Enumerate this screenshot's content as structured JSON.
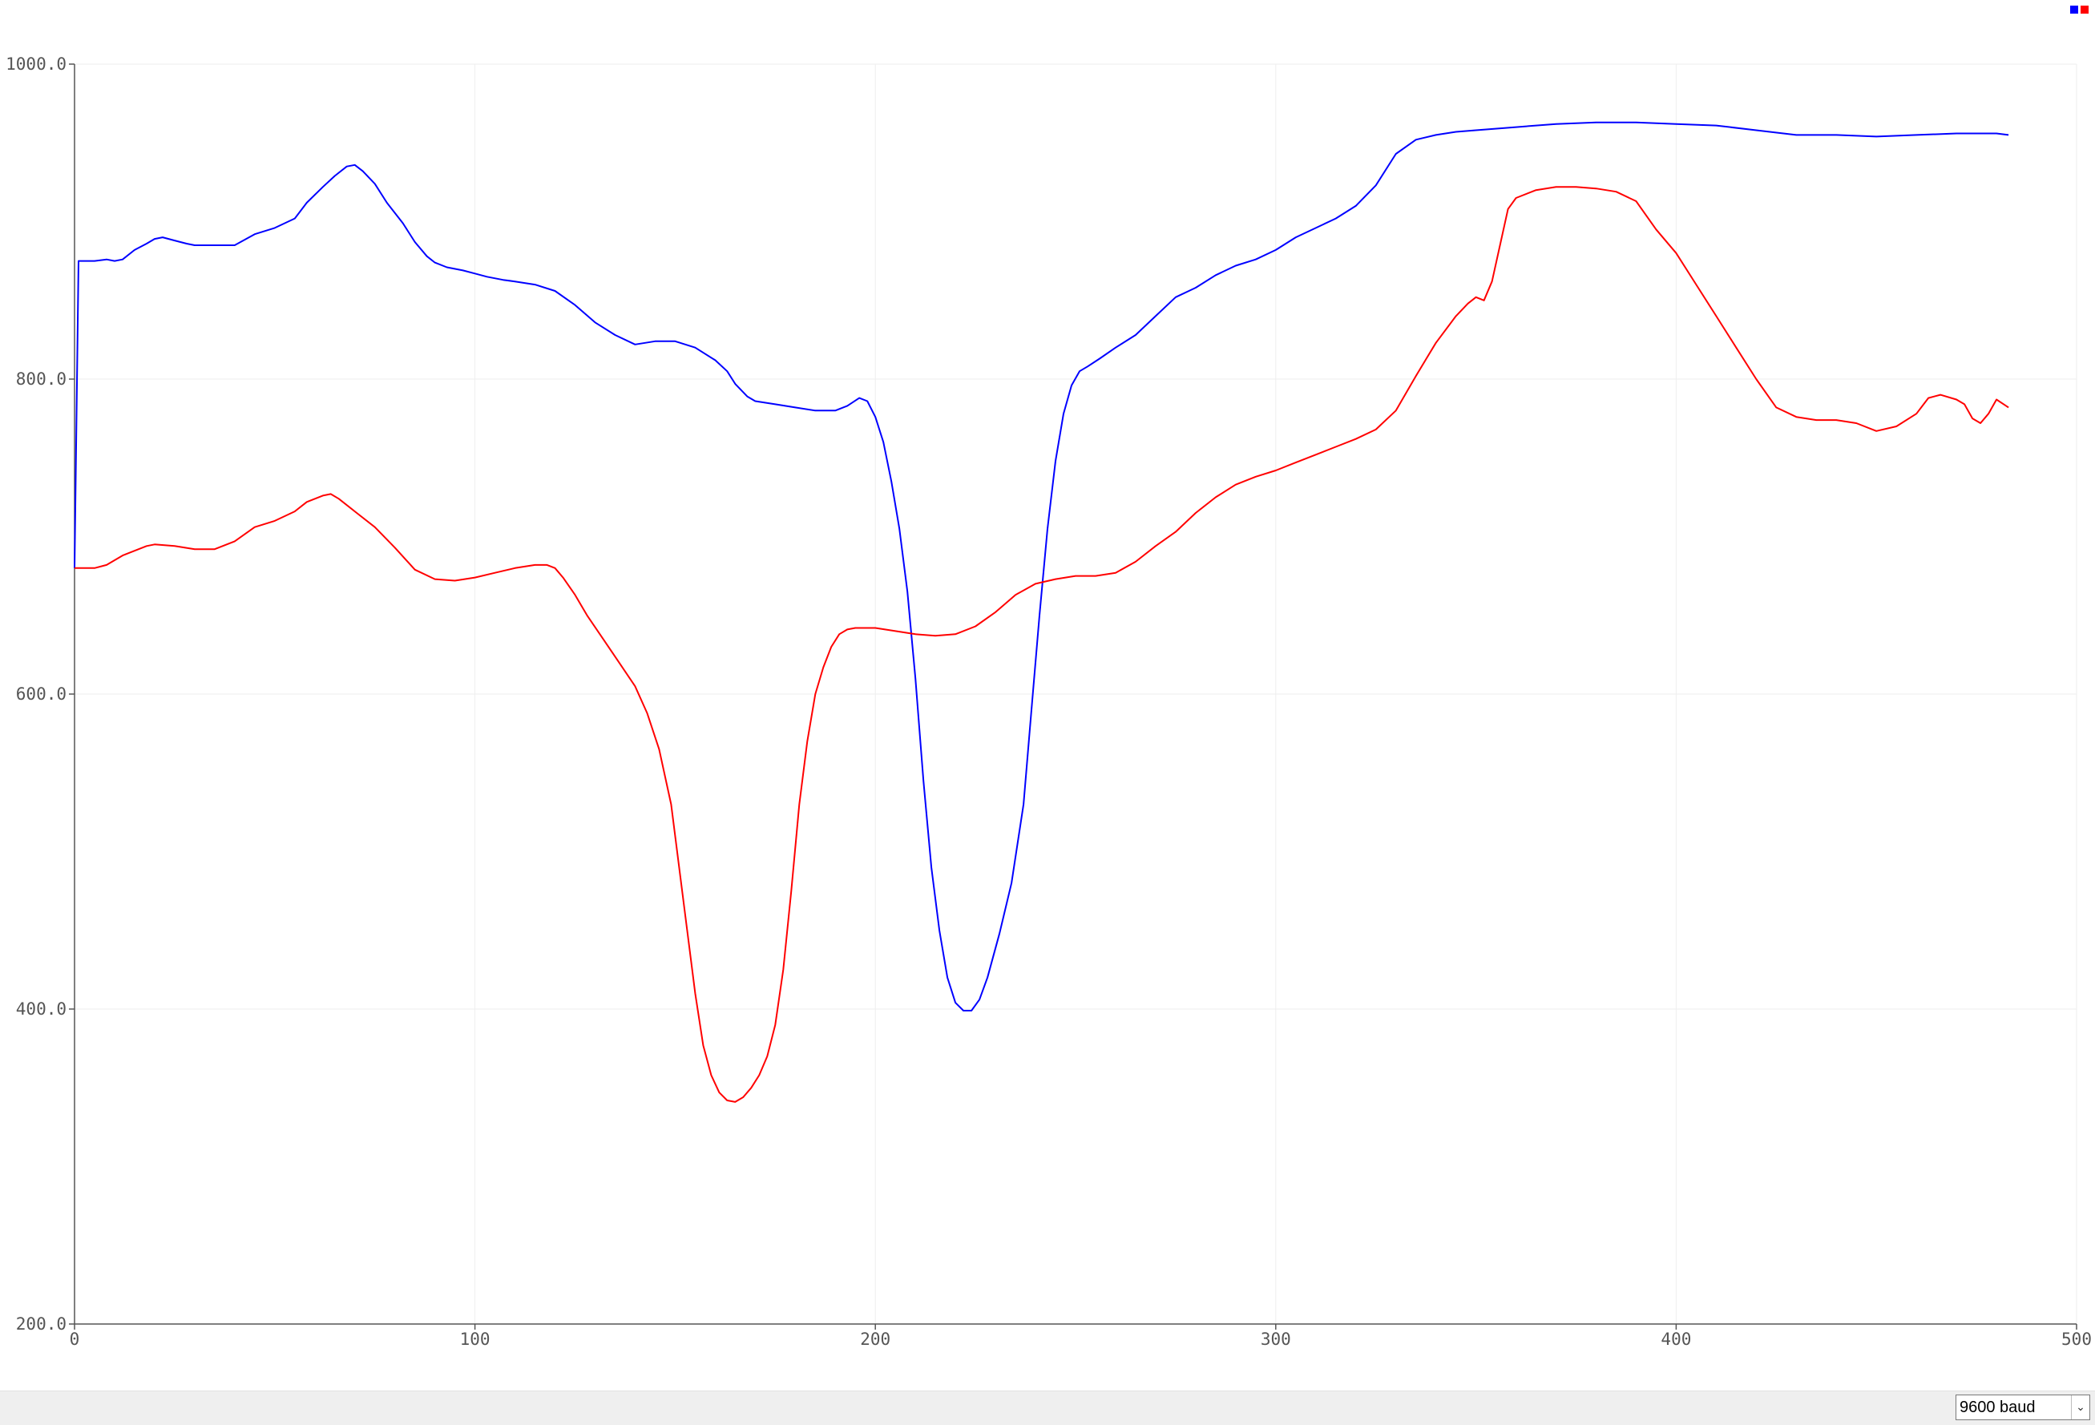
{
  "chart_data": {
    "type": "line",
    "title": "",
    "xlabel": "",
    "ylabel": "",
    "xlim": [
      0,
      500
    ],
    "ylim": [
      200,
      1000
    ],
    "x_ticks": [
      "0",
      "100",
      "200",
      "300",
      "400",
      "500"
    ],
    "y_ticks": [
      "200.0",
      "400.0",
      "600.0",
      "800.0",
      "1000.0"
    ],
    "grid": true,
    "legend": "top-right",
    "series": [
      {
        "color": "#0000ff",
        "points": [
          [
            0,
            680
          ],
          [
            1,
            875
          ],
          [
            5,
            875
          ],
          [
            8,
            876
          ],
          [
            10,
            875
          ],
          [
            12,
            876
          ],
          [
            15,
            882
          ],
          [
            18,
            886
          ],
          [
            20,
            889
          ],
          [
            22,
            890
          ],
          [
            25,
            888
          ],
          [
            28,
            886
          ],
          [
            30,
            885
          ],
          [
            40,
            885
          ],
          [
            45,
            892
          ],
          [
            50,
            896
          ],
          [
            55,
            902
          ],
          [
            58,
            912
          ],
          [
            62,
            922
          ],
          [
            65,
            929
          ],
          [
            68,
            935
          ],
          [
            70,
            936
          ],
          [
            72,
            932
          ],
          [
            75,
            924
          ],
          [
            78,
            912
          ],
          [
            82,
            899
          ],
          [
            85,
            887
          ],
          [
            88,
            878
          ],
          [
            90,
            874
          ],
          [
            93,
            871
          ],
          [
            97,
            869
          ],
          [
            100,
            867
          ],
          [
            103,
            865
          ],
          [
            107,
            863
          ],
          [
            110,
            862
          ],
          [
            115,
            860
          ],
          [
            120,
            856
          ],
          [
            125,
            847
          ],
          [
            130,
            836
          ],
          [
            135,
            828
          ],
          [
            140,
            822
          ],
          [
            145,
            824
          ],
          [
            150,
            824
          ],
          [
            155,
            820
          ],
          [
            160,
            812
          ],
          [
            163,
            805
          ],
          [
            165,
            797
          ],
          [
            168,
            789
          ],
          [
            170,
            786
          ],
          [
            175,
            784
          ],
          [
            180,
            782
          ],
          [
            185,
            780
          ],
          [
            190,
            780
          ],
          [
            193,
            783
          ],
          [
            196,
            788
          ],
          [
            198,
            786
          ],
          [
            200,
            776
          ],
          [
            202,
            760
          ],
          [
            204,
            735
          ],
          [
            206,
            705
          ],
          [
            208,
            665
          ],
          [
            210,
            610
          ],
          [
            212,
            545
          ],
          [
            214,
            490
          ],
          [
            216,
            450
          ],
          [
            218,
            420
          ],
          [
            220,
            404
          ],
          [
            222,
            399
          ],
          [
            224,
            399
          ],
          [
            226,
            406
          ],
          [
            228,
            420
          ],
          [
            231,
            448
          ],
          [
            234,
            480
          ],
          [
            237,
            530
          ],
          [
            239,
            590
          ],
          [
            241,
            650
          ],
          [
            243,
            705
          ],
          [
            245,
            748
          ],
          [
            247,
            778
          ],
          [
            249,
            796
          ],
          [
            251,
            805
          ],
          [
            253,
            808
          ],
          [
            256,
            813
          ],
          [
            260,
            820
          ],
          [
            265,
            828
          ],
          [
            270,
            840
          ],
          [
            275,
            852
          ],
          [
            280,
            858
          ],
          [
            285,
            866
          ],
          [
            290,
            872
          ],
          [
            295,
            876
          ],
          [
            300,
            882
          ],
          [
            305,
            890
          ],
          [
            310,
            896
          ],
          [
            315,
            902
          ],
          [
            320,
            910
          ],
          [
            325,
            923
          ],
          [
            330,
            943
          ],
          [
            335,
            952
          ],
          [
            340,
            955
          ],
          [
            345,
            957
          ],
          [
            350,
            958
          ],
          [
            360,
            960
          ],
          [
            370,
            962
          ],
          [
            380,
            963
          ],
          [
            390,
            963
          ],
          [
            400,
            962
          ],
          [
            410,
            961
          ],
          [
            420,
            958
          ],
          [
            430,
            955
          ],
          [
            440,
            955
          ],
          [
            450,
            954
          ],
          [
            460,
            955
          ],
          [
            470,
            956
          ],
          [
            480,
            956
          ],
          [
            483,
            955
          ]
        ]
      },
      {
        "color": "#ff0000",
        "points": [
          [
            0,
            680
          ],
          [
            5,
            680
          ],
          [
            8,
            682
          ],
          [
            12,
            688
          ],
          [
            15,
            691
          ],
          [
            18,
            694
          ],
          [
            20,
            695
          ],
          [
            25,
            694
          ],
          [
            30,
            692
          ],
          [
            35,
            692
          ],
          [
            40,
            697
          ],
          [
            45,
            706
          ],
          [
            50,
            710
          ],
          [
            55,
            716
          ],
          [
            58,
            722
          ],
          [
            62,
            726
          ],
          [
            64,
            727
          ],
          [
            66,
            724
          ],
          [
            70,
            716
          ],
          [
            75,
            706
          ],
          [
            80,
            693
          ],
          [
            85,
            679
          ],
          [
            90,
            673
          ],
          [
            95,
            672
          ],
          [
            100,
            674
          ],
          [
            105,
            677
          ],
          [
            110,
            680
          ],
          [
            115,
            682
          ],
          [
            118,
            682
          ],
          [
            120,
            680
          ],
          [
            122,
            674
          ],
          [
            125,
            663
          ],
          [
            128,
            650
          ],
          [
            132,
            635
          ],
          [
            136,
            620
          ],
          [
            140,
            605
          ],
          [
            143,
            588
          ],
          [
            146,
            565
          ],
          [
            149,
            530
          ],
          [
            151,
            490
          ],
          [
            153,
            450
          ],
          [
            155,
            410
          ],
          [
            157,
            377
          ],
          [
            159,
            358
          ],
          [
            161,
            347
          ],
          [
            163,
            342
          ],
          [
            165,
            341
          ],
          [
            167,
            344
          ],
          [
            169,
            350
          ],
          [
            171,
            358
          ],
          [
            173,
            370
          ],
          [
            175,
            390
          ],
          [
            177,
            425
          ],
          [
            179,
            475
          ],
          [
            181,
            530
          ],
          [
            183,
            570
          ],
          [
            185,
            600
          ],
          [
            187,
            617
          ],
          [
            189,
            630
          ],
          [
            191,
            638
          ],
          [
            193,
            641
          ],
          [
            195,
            642
          ],
          [
            200,
            642
          ],
          [
            205,
            640
          ],
          [
            210,
            638
          ],
          [
            215,
            637
          ],
          [
            220,
            638
          ],
          [
            225,
            643
          ],
          [
            230,
            652
          ],
          [
            235,
            663
          ],
          [
            240,
            670
          ],
          [
            245,
            673
          ],
          [
            250,
            675
          ],
          [
            255,
            675
          ],
          [
            260,
            677
          ],
          [
            265,
            684
          ],
          [
            270,
            694
          ],
          [
            275,
            703
          ],
          [
            280,
            715
          ],
          [
            285,
            725
          ],
          [
            290,
            733
          ],
          [
            295,
            738
          ],
          [
            300,
            742
          ],
          [
            305,
            747
          ],
          [
            310,
            752
          ],
          [
            315,
            757
          ],
          [
            320,
            762
          ],
          [
            325,
            768
          ],
          [
            330,
            780
          ],
          [
            335,
            802
          ],
          [
            340,
            823
          ],
          [
            345,
            840
          ],
          [
            348,
            848
          ],
          [
            350,
            852
          ],
          [
            352,
            850
          ],
          [
            354,
            862
          ],
          [
            356,
            885
          ],
          [
            358,
            908
          ],
          [
            360,
            915
          ],
          [
            365,
            920
          ],
          [
            370,
            922
          ],
          [
            375,
            922
          ],
          [
            380,
            921
          ],
          [
            385,
            919
          ],
          [
            390,
            913
          ],
          [
            395,
            895
          ],
          [
            400,
            880
          ],
          [
            405,
            860
          ],
          [
            410,
            840
          ],
          [
            415,
            820
          ],
          [
            420,
            800
          ],
          [
            425,
            782
          ],
          [
            430,
            776
          ],
          [
            435,
            774
          ],
          [
            440,
            774
          ],
          [
            445,
            772
          ],
          [
            450,
            767
          ],
          [
            455,
            770
          ],
          [
            460,
            778
          ],
          [
            463,
            788
          ],
          [
            466,
            790
          ],
          [
            470,
            787
          ],
          [
            472,
            784
          ],
          [
            474,
            775
          ],
          [
            476,
            772
          ],
          [
            478,
            778
          ],
          [
            480,
            787
          ],
          [
            483,
            782
          ]
        ]
      }
    ]
  },
  "legend_colors": [
    "#0000ff",
    "#ff0000"
  ],
  "controls": {
    "baud_value": "9600 baud"
  }
}
